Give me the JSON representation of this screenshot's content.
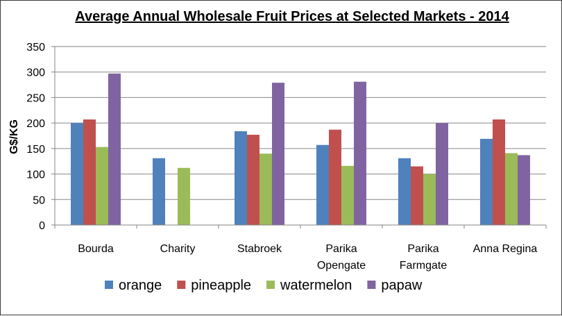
{
  "chart_data": {
    "type": "bar",
    "title": "Average Annual  Wholesale Fruit Prices at Selected Markets - 2014",
    "ylabel": "G$/KG",
    "xlabel": "",
    "ylim": [
      0,
      350
    ],
    "yticks": [
      0,
      50,
      100,
      150,
      200,
      250,
      300,
      350
    ],
    "grid": true,
    "legend": "bottom",
    "categories": [
      [
        "Bourda"
      ],
      [
        "Charity"
      ],
      [
        "Stabroek"
      ],
      [
        "Parika",
        "Opengate"
      ],
      [
        "Parika",
        "Farmgate"
      ],
      [
        "Anna Regina"
      ]
    ],
    "series": [
      {
        "name": "orange",
        "color": "#4F81BD",
        "values": [
          200,
          131,
          184,
          157,
          131,
          169
        ]
      },
      {
        "name": "pineapple",
        "color": "#C0504D",
        "values": [
          207,
          null,
          177,
          187,
          115,
          207
        ]
      },
      {
        "name": "watermelon",
        "color": "#9BBB59",
        "values": [
          153,
          112,
          140,
          116,
          100,
          141
        ]
      },
      {
        "name": "papaw",
        "color": "#8064A2",
        "values": [
          297,
          null,
          279,
          281,
          200,
          137
        ]
      }
    ]
  }
}
